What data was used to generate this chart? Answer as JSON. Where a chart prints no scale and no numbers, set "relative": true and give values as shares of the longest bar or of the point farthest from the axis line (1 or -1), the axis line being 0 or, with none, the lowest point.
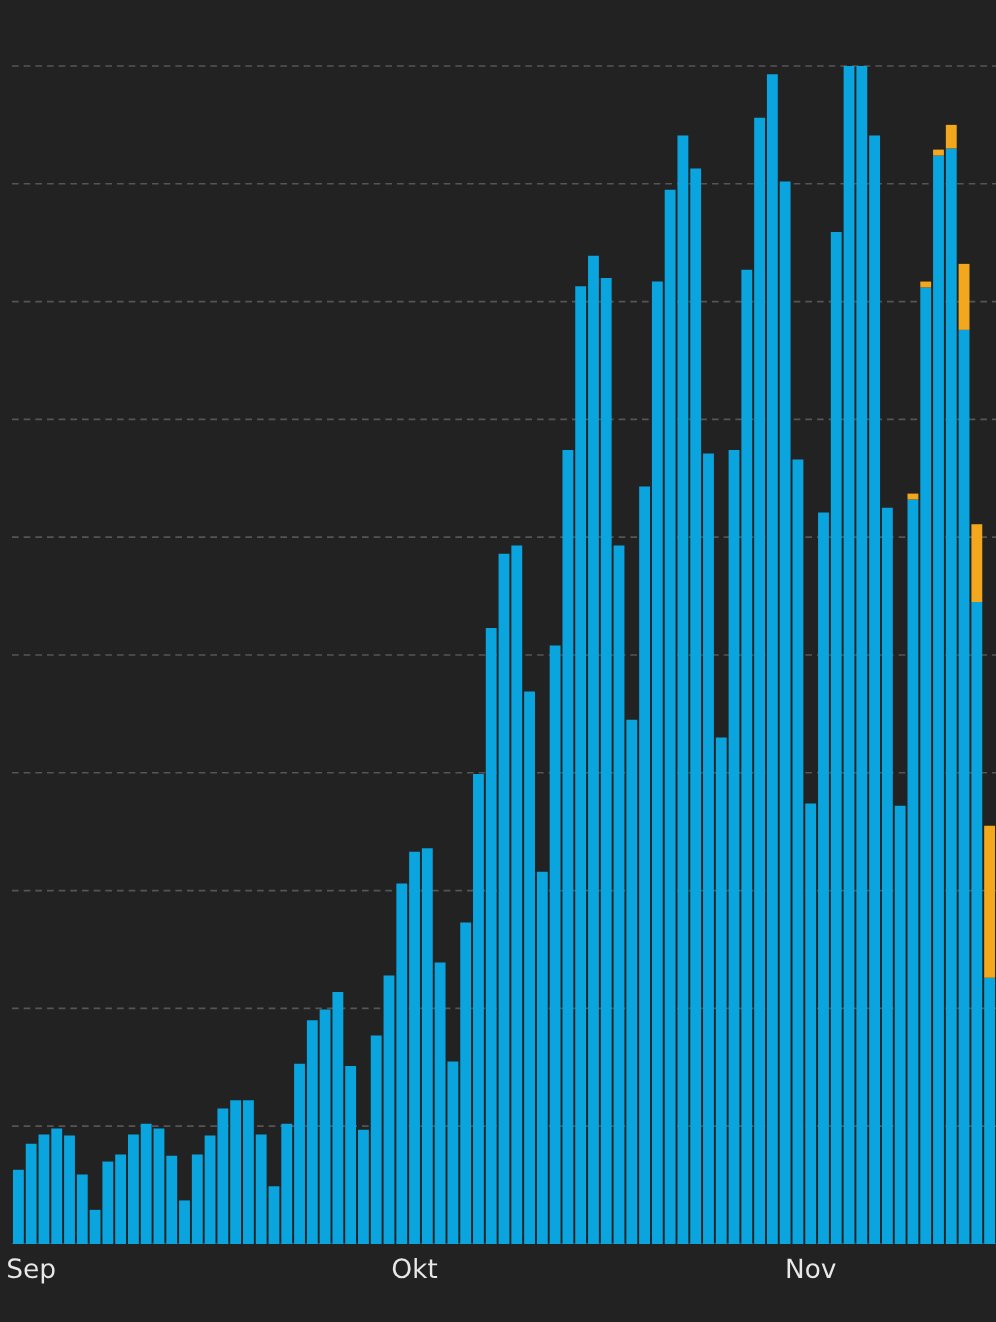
{
  "chart_data": {
    "type": "bar",
    "stacked": true,
    "relative": true,
    "grid": "y",
    "categories": [
      null,
      "Sep",
      null,
      null,
      null,
      null,
      null,
      null,
      null,
      null,
      null,
      null,
      null,
      null,
      null,
      null,
      null,
      null,
      null,
      null,
      null,
      null,
      null,
      null,
      null,
      null,
      null,
      null,
      null,
      null,
      null,
      "Okt",
      null,
      null,
      null,
      null,
      null,
      null,
      null,
      null,
      null,
      null,
      null,
      null,
      null,
      null,
      null,
      null,
      null,
      null,
      null,
      null,
      null,
      null,
      null,
      null,
      null,
      null,
      null,
      null,
      null,
      null,
      "Nov",
      null,
      null,
      null,
      null,
      null,
      null,
      null,
      null,
      null,
      null,
      null,
      null,
      null,
      null
    ],
    "series": [
      {
        "color": "#0aa5de",
        "values": [
          0.063,
          0.085,
          0.093,
          0.098,
          0.092,
          0.059,
          0.029,
          0.07,
          0.076,
          0.093,
          0.102,
          0.098,
          0.075,
          0.037,
          0.076,
          0.092,
          0.115,
          0.122,
          0.122,
          0.093,
          0.049,
          0.102,
          0.153,
          0.19,
          0.199,
          0.214,
          0.151,
          0.097,
          0.177,
          0.228,
          0.306,
          0.333,
          0.336,
          0.239,
          0.155,
          0.273,
          0.399,
          0.523,
          0.586,
          0.593,
          0.469,
          0.316,
          0.508,
          0.674,
          0.813,
          0.839,
          0.82,
          0.593,
          0.445,
          0.643,
          0.817,
          0.895,
          0.941,
          0.913,
          0.671,
          0.43,
          0.674,
          0.827,
          0.956,
          0.993,
          0.902,
          0.666,
          0.374,
          0.621,
          0.859,
          1.0,
          1.0,
          0.941,
          0.625,
          0.372,
          0.632,
          0.812,
          0.924,
          0.93,
          0.776,
          0.545,
          0.226
        ]
      },
      {
        "color": "#f2a71d",
        "values": [
          null,
          null,
          null,
          null,
          null,
          null,
          null,
          null,
          null,
          null,
          null,
          null,
          null,
          null,
          null,
          null,
          null,
          null,
          null,
          null,
          null,
          null,
          null,
          null,
          null,
          null,
          null,
          null,
          null,
          null,
          null,
          null,
          null,
          null,
          null,
          null,
          null,
          null,
          null,
          null,
          null,
          null,
          null,
          null,
          null,
          null,
          null,
          null,
          null,
          null,
          null,
          null,
          null,
          null,
          null,
          null,
          null,
          null,
          null,
          null,
          null,
          null,
          null,
          null,
          null,
          null,
          null,
          null,
          null,
          null,
          0.005,
          0.005,
          0.005,
          0.02,
          0.056,
          0.066,
          0.129
        ]
      }
    ]
  }
}
